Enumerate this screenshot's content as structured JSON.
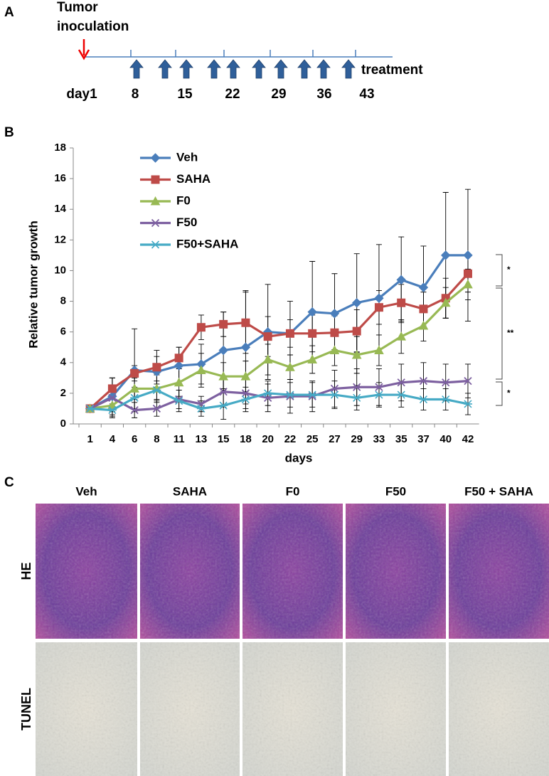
{
  "panel_a": {
    "label": "A",
    "inoculation": [
      "Tumor",
      "inoculation"
    ],
    "treatment": "treatment",
    "days": [
      "day1",
      "8",
      "15",
      "22",
      "29",
      "36",
      "43"
    ]
  },
  "chart_data": {
    "type": "line",
    "label": "B",
    "x_label": "days",
    "y_label": "Relative tumor growth",
    "categories": [
      "1",
      "4",
      "6",
      "8",
      "11",
      "13",
      "15",
      "18",
      "20",
      "22",
      "25",
      "27",
      "29",
      "33",
      "35",
      "37",
      "40",
      "42"
    ],
    "ylim": [
      0,
      18
    ],
    "yticks": [
      0,
      2,
      4,
      6,
      8,
      10,
      12,
      14,
      16,
      18
    ],
    "series": [
      {
        "name": "Veh",
        "color": "#4a7ebb",
        "marker": "diamond",
        "values": [
          1,
          1.8,
          3.5,
          3.4,
          3.8,
          3.9,
          4.8,
          5.0,
          6.0,
          5.9,
          7.3,
          7.2,
          7.9,
          8.2,
          9.4,
          8.9,
          11.0,
          11.0
        ],
        "errors": [
          0.1,
          1.2,
          2.7,
          1.0,
          1.2,
          1.3,
          2.5,
          3.7,
          3.1,
          2.1,
          3.3,
          2.6,
          3.2,
          3.5,
          2.8,
          2.7,
          4.1,
          4.3
        ]
      },
      {
        "name": "SAHA",
        "color": "#be4b48",
        "marker": "square",
        "values": [
          1,
          2.3,
          3.3,
          3.7,
          4.3,
          6.3,
          6.5,
          6.6,
          5.7,
          5.9,
          5.9,
          5.95,
          6.05,
          7.6,
          7.9,
          7.5,
          8.2,
          9.8
        ],
        "errors": [
          0.1,
          0.7,
          0.5,
          1.1,
          0.7,
          0.8,
          0.8,
          2.0,
          1.3,
          0.9,
          1.2,
          1.1,
          1.4,
          1.1,
          1.2,
          1.1,
          1.3,
          1.2
        ]
      },
      {
        "name": "F0",
        "color": "#98b954",
        "marker": "triangle",
        "values": [
          1,
          1.2,
          2.3,
          2.3,
          2.7,
          3.5,
          3.1,
          3.1,
          4.2,
          3.7,
          4.2,
          4.8,
          4.5,
          4.8,
          5.7,
          6.4,
          7.9,
          9.1
        ],
        "errors": [
          0.1,
          0.4,
          0.7,
          0.9,
          0.9,
          1.1,
          0.9,
          1.0,
          1.0,
          0.8,
          0.9,
          1.0,
          1.2,
          1.0,
          1.1,
          1.0,
          1.0,
          1.0
        ]
      },
      {
        "name": "F50",
        "color": "#7d60a0",
        "marker": "x",
        "values": [
          1,
          1.7,
          0.9,
          1.0,
          1.6,
          1.3,
          2.1,
          2.0,
          1.7,
          1.8,
          1.8,
          2.3,
          2.4,
          2.4,
          2.7,
          2.8,
          2.7,
          2.8
        ],
        "errors": [
          0.1,
          1.3,
          0.5,
          0.5,
          0.6,
          0.5,
          1.0,
          1.0,
          0.9,
          1.1,
          1.0,
          1.2,
          1.2,
          1.2,
          1.2,
          1.2,
          1.2,
          1.1
        ]
      },
      {
        "name": "F50+SAHA",
        "color": "#46aac5",
        "marker": "asterisk",
        "values": [
          1,
          0.9,
          1.7,
          2.2,
          1.5,
          1.0,
          1.2,
          1.6,
          2.0,
          1.9,
          1.9,
          1.9,
          1.7,
          1.9,
          1.9,
          1.6,
          1.6,
          1.3
        ],
        "errors": [
          0.1,
          0.4,
          0.7,
          0.6,
          0.7,
          0.5,
          0.9,
          0.8,
          0.8,
          0.8,
          0.8,
          0.9,
          0.8,
          0.8,
          0.8,
          0.7,
          0.7,
          0.7
        ]
      }
    ],
    "annotations": [
      "*",
      "**",
      "*"
    ]
  },
  "panel_c": {
    "label": "C",
    "columns": [
      "Veh",
      "SAHA",
      "F0",
      "F50",
      "F50 + SAHA"
    ],
    "rows": [
      "HE",
      "TUNEL"
    ]
  }
}
